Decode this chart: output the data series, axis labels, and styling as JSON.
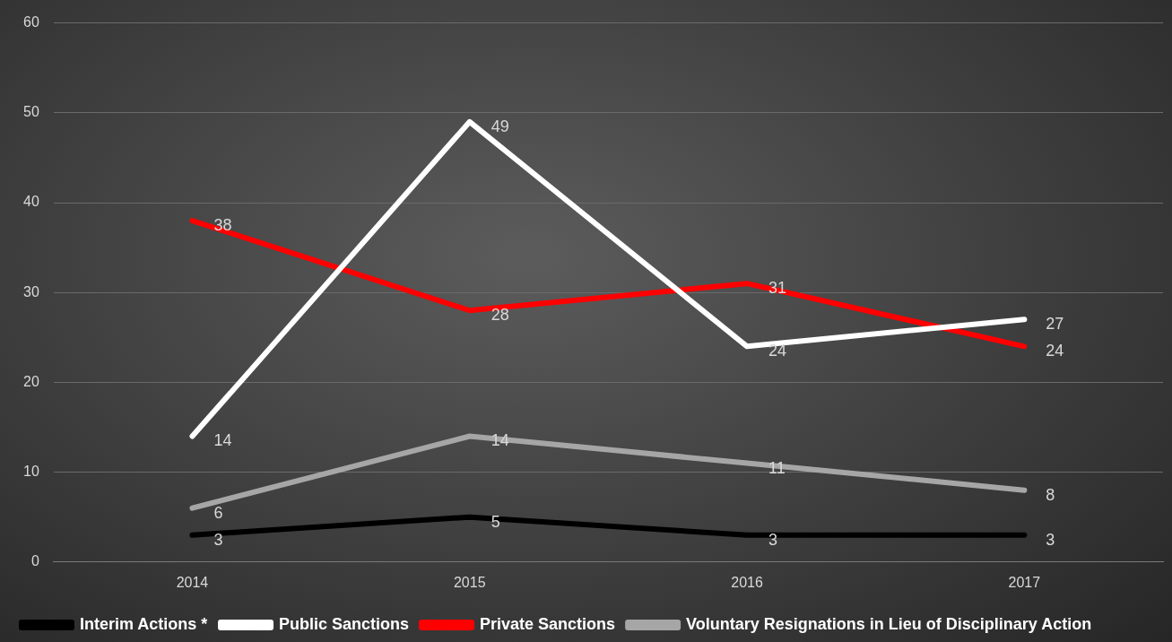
{
  "chart_data": {
    "type": "line",
    "categories": [
      "2014",
      "2015",
      "2016",
      "2017"
    ],
    "series": [
      {
        "name": "Interim Actions *",
        "color": "#000000",
        "values": [
          3,
          5,
          3,
          3
        ]
      },
      {
        "name": "Public Sanctions",
        "color": "#ffffff",
        "values": [
          14,
          49,
          24,
          27
        ]
      },
      {
        "name": "Private Sanctions",
        "color": "#ff0000",
        "values": [
          38,
          28,
          31,
          24
        ]
      },
      {
        "name": "Voluntary Resignations in Lieu of Disciplinary Action",
        "color": "#a6a6a6",
        "values": [
          6,
          14,
          11,
          8
        ]
      }
    ],
    "ylim": [
      0,
      60
    ],
    "yticks": [
      0,
      10,
      20,
      30,
      40,
      50,
      60
    ],
    "grid": "y",
    "legend": "bottom",
    "data_labels": true,
    "marker": "none",
    "line_style": "solid"
  }
}
